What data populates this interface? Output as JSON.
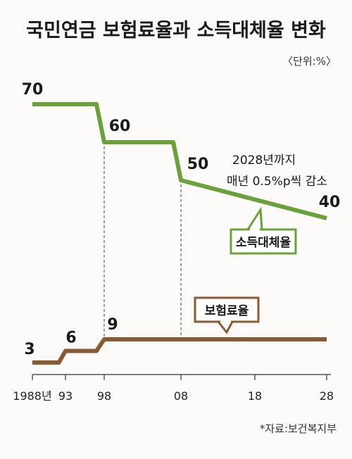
{
  "chart_data": {
    "type": "line",
    "title": "국민연금 보험료율과 소득대체율 변화",
    "unit": "〈단위:%〉",
    "source": "*자료:보건복지부",
    "x_ticks": [
      {
        "year": 1988,
        "label": "1988년"
      },
      {
        "year": 1993,
        "label": "93"
      },
      {
        "year": 1998,
        "label": "98"
      },
      {
        "year": 2008,
        "label": "08"
      },
      {
        "year": 2018,
        "label": "18"
      },
      {
        "year": 2028,
        "label": "28"
      }
    ],
    "xlim": [
      1988,
      2028
    ],
    "series": [
      {
        "name": "소득대체율",
        "color": "#6aa13a",
        "points": [
          [
            1988,
            70
          ],
          [
            1997,
            70
          ],
          [
            1998,
            60
          ],
          [
            2007,
            60
          ],
          [
            2008,
            50
          ],
          [
            2028,
            40
          ]
        ],
        "labels": [
          {
            "x": 1988,
            "y": 70,
            "text": "70"
          },
          {
            "x": 1998,
            "y": 60,
            "text": "60"
          },
          {
            "x": 2008,
            "y": 50,
            "text": "50"
          },
          {
            "x": 2028,
            "y": 40,
            "text": "40"
          }
        ]
      },
      {
        "name": "보험료율",
        "color": "#8a5a33",
        "points": [
          [
            1988,
            3
          ],
          [
            1992,
            3
          ],
          [
            1993,
            6
          ],
          [
            1997,
            6
          ],
          [
            1998,
            9
          ],
          [
            2028,
            9
          ]
        ],
        "labels": [
          {
            "x": 1988,
            "y": 3,
            "text": "3"
          },
          {
            "x": 1993,
            "y": 6,
            "text": "6"
          },
          {
            "x": 1998,
            "y": 9,
            "text": "9"
          }
        ]
      }
    ],
    "annotation": {
      "line1": "2028년까지",
      "line2": "매년 0.5%p씩 감소"
    }
  }
}
